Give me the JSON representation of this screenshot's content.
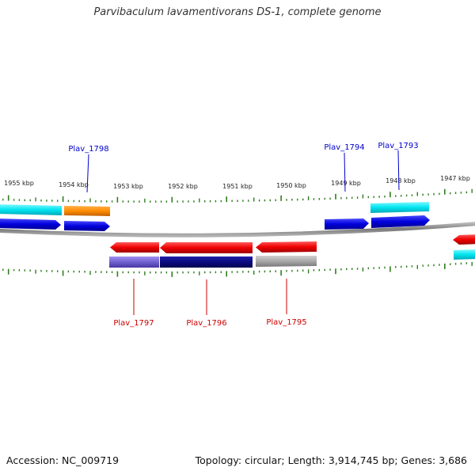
{
  "title": "Parvibaculum lavamentivorans DS-1, complete genome",
  "footer": {
    "accession": "Accession: NC_009719",
    "summary": "Topology: circular; Length: 3,914,745 bp; Genes: 3,686"
  },
  "ruler": {
    "ticks": [
      "1955 kbp",
      "1954 kbp",
      "1953 kbp",
      "1952 kbp",
      "1951 kbp",
      "1950 kbp",
      "1949 kbp",
      "1948 kbp",
      "1947 kbp"
    ]
  },
  "gene_labels": {
    "top": [
      "Plav_1798",
      "Plav_1794",
      "Plav_1793"
    ],
    "bottom": [
      "Plav_1797",
      "Plav_1796",
      "Plav_1795"
    ]
  },
  "colors": {
    "backbone": "#8a8a8a",
    "tick": "#2f7d1f",
    "forward_gene": "#0000dd",
    "reverse_gene": "#ee0000",
    "cyan_feature": "#00e5f0",
    "orange_feature": "#ff8c00",
    "navy_feature": "#0a0a80",
    "lavender_feature": "#7060d0",
    "gray_feature": "#a0a0a0",
    "top_label_color": "#0000cc",
    "bottom_label_color": "#cc0000"
  }
}
